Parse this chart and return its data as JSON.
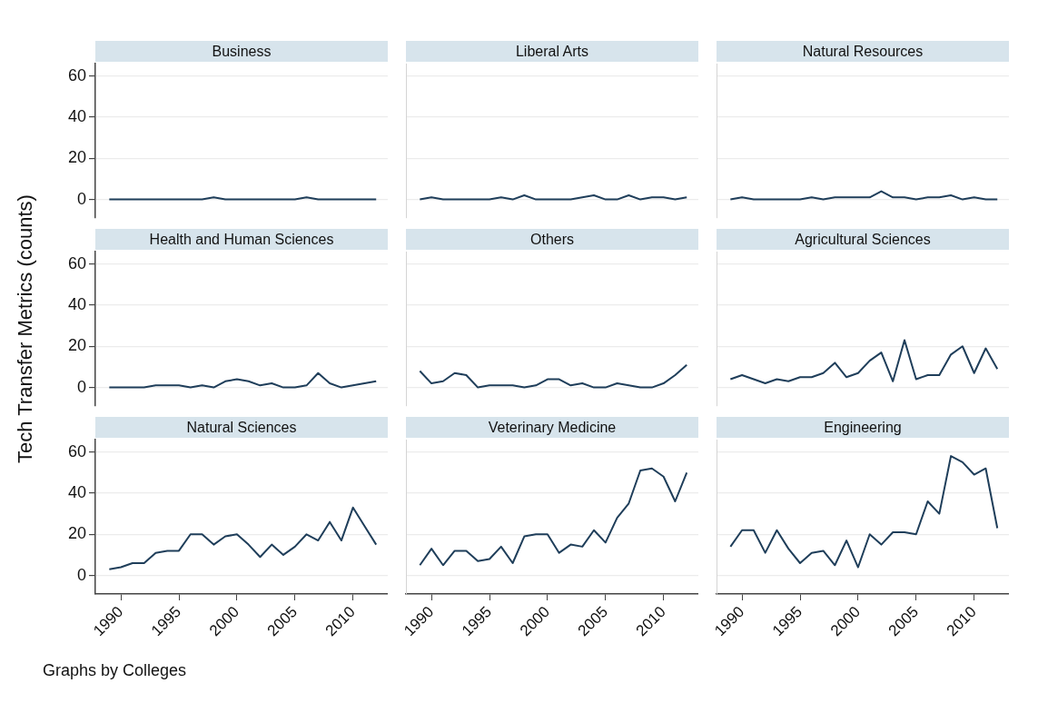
{
  "chart_data": [
    {
      "type": "line",
      "title": "Business",
      "x": [
        1989,
        1990,
        1991,
        1992,
        1993,
        1994,
        1995,
        1996,
        1997,
        1998,
        1999,
        2000,
        2001,
        2002,
        2003,
        2004,
        2005,
        2006,
        2007,
        2008,
        2009,
        2010,
        2011,
        2012
      ],
      "xlim": [
        1987.8,
        2013
      ],
      "ylim": [
        -9,
        66
      ],
      "yticks": [
        0,
        20,
        40,
        60
      ],
      "grid": "y",
      "tick_labels": "y",
      "series": [
        {
          "color": "#1f3e5a",
          "values": [
            0,
            0,
            0,
            0,
            0,
            0,
            0,
            0,
            0,
            1,
            0,
            0,
            0,
            0,
            0,
            0,
            0,
            1,
            0,
            0,
            0,
            0,
            0,
            0
          ]
        }
      ]
    },
    {
      "type": "line",
      "title": "Liberal Arts",
      "x": [
        1989,
        1990,
        1991,
        1992,
        1993,
        1994,
        1995,
        1996,
        1997,
        1998,
        1999,
        2000,
        2001,
        2002,
        2003,
        2004,
        2005,
        2006,
        2007,
        2008,
        2009,
        2010,
        2011,
        2012
      ],
      "xlim": [
        1987.8,
        2013
      ],
      "ylim": [
        -9,
        66
      ],
      "yticks": [
        0,
        20,
        40,
        60
      ],
      "grid": "y",
      "tick_labels": false,
      "series": [
        {
          "color": "#1f3e5a",
          "values": [
            0,
            1,
            0,
            0,
            0,
            0,
            0,
            1,
            0,
            2,
            0,
            0,
            0,
            0,
            1,
            2,
            0,
            0,
            2,
            0,
            1,
            1,
            0,
            1
          ]
        }
      ]
    },
    {
      "type": "line",
      "title": "Natural Resources",
      "x": [
        1989,
        1990,
        1991,
        1992,
        1993,
        1994,
        1995,
        1996,
        1997,
        1998,
        1999,
        2000,
        2001,
        2002,
        2003,
        2004,
        2005,
        2006,
        2007,
        2008,
        2009,
        2010,
        2011,
        2012
      ],
      "xlim": [
        1987.8,
        2013
      ],
      "ylim": [
        -9,
        66
      ],
      "yticks": [
        0,
        20,
        40,
        60
      ],
      "grid": "y",
      "tick_labels": false,
      "series": [
        {
          "color": "#1f3e5a",
          "values": [
            0,
            1,
            0,
            0,
            0,
            0,
            0,
            1,
            0,
            1,
            1,
            1,
            1,
            4,
            1,
            1,
            0,
            1,
            1,
            2,
            0,
            1,
            0,
            0
          ]
        }
      ]
    },
    {
      "type": "line",
      "title": "Health and Human Sciences",
      "ylabel": "Tech Transfer Metrics (counts)",
      "x": [
        1989,
        1990,
        1991,
        1992,
        1993,
        1994,
        1995,
        1996,
        1997,
        1998,
        1999,
        2000,
        2001,
        2002,
        2003,
        2004,
        2005,
        2006,
        2007,
        2008,
        2009,
        2010,
        2011,
        2012
      ],
      "xlim": [
        1987.8,
        2013
      ],
      "ylim": [
        -9,
        66
      ],
      "yticks": [
        0,
        20,
        40,
        60
      ],
      "grid": "y",
      "tick_labels": "y",
      "series": [
        {
          "color": "#1f3e5a",
          "values": [
            0,
            0,
            0,
            0,
            1,
            1,
            1,
            0,
            1,
            0,
            3,
            4,
            3,
            1,
            2,
            0,
            0,
            1,
            7,
            2,
            0,
            1,
            2,
            3
          ]
        }
      ]
    },
    {
      "type": "line",
      "title": "Others",
      "x": [
        1989,
        1990,
        1991,
        1992,
        1993,
        1994,
        1995,
        1996,
        1997,
        1998,
        1999,
        2000,
        2001,
        2002,
        2003,
        2004,
        2005,
        2006,
        2007,
        2008,
        2009,
        2010,
        2011,
        2012
      ],
      "xlim": [
        1987.8,
        2013
      ],
      "ylim": [
        -9,
        66
      ],
      "yticks": [
        0,
        20,
        40,
        60
      ],
      "grid": "y",
      "tick_labels": false,
      "series": [
        {
          "color": "#1f3e5a",
          "values": [
            8,
            2,
            3,
            7,
            6,
            0,
            1,
            1,
            1,
            0,
            1,
            4,
            4,
            1,
            2,
            0,
            0,
            2,
            1,
            0,
            0,
            2,
            6,
            11
          ]
        }
      ]
    },
    {
      "type": "line",
      "title": "Agricultural Sciences",
      "x": [
        1989,
        1990,
        1991,
        1992,
        1993,
        1994,
        1995,
        1996,
        1997,
        1998,
        1999,
        2000,
        2001,
        2002,
        2003,
        2004,
        2005,
        2006,
        2007,
        2008,
        2009,
        2010,
        2011,
        2012
      ],
      "xlim": [
        1987.8,
        2013
      ],
      "ylim": [
        -9,
        66
      ],
      "yticks": [
        0,
        20,
        40,
        60
      ],
      "grid": "y",
      "tick_labels": false,
      "series": [
        {
          "color": "#1f3e5a",
          "values": [
            4,
            6,
            4,
            2,
            4,
            3,
            5,
            5,
            7,
            12,
            5,
            7,
            13,
            17,
            3,
            23,
            4,
            6,
            6,
            16,
            20,
            7,
            19,
            9
          ]
        }
      ]
    },
    {
      "type": "line",
      "title": "Natural Sciences",
      "annotations": [
        "Graphs by Colleges"
      ],
      "x": [
        1989,
        1990,
        1991,
        1992,
        1993,
        1994,
        1995,
        1996,
        1997,
        1998,
        1999,
        2000,
        2001,
        2002,
        2003,
        2004,
        2005,
        2006,
        2007,
        2008,
        2009,
        2010,
        2011,
        2012
      ],
      "xlim": [
        1987.8,
        2013
      ],
      "xticks": [
        1990,
        1995,
        2000,
        2005,
        2010
      ],
      "ylim": [
        -9,
        66
      ],
      "yticks": [
        0,
        20,
        40,
        60
      ],
      "grid": "y",
      "series": [
        {
          "color": "#1f3e5a",
          "values": [
            3,
            4,
            6,
            6,
            11,
            12,
            12,
            20,
            20,
            15,
            19,
            20,
            15,
            9,
            15,
            10,
            14,
            20,
            17,
            26,
            17,
            33,
            24,
            15
          ]
        }
      ]
    },
    {
      "type": "line",
      "title": "Veterinary Medicine",
      "x": [
        1989,
        1990,
        1991,
        1992,
        1993,
        1994,
        1995,
        1996,
        1997,
        1998,
        1999,
        2000,
        2001,
        2002,
        2003,
        2004,
        2005,
        2006,
        2007,
        2008,
        2009,
        2010,
        2011,
        2012
      ],
      "xlim": [
        1987.8,
        2013
      ],
      "xticks": [
        1990,
        1995,
        2000,
        2005,
        2010
      ],
      "ylim": [
        -9,
        66
      ],
      "yticks": [
        0,
        20,
        40,
        60
      ],
      "grid": "y",
      "tick_labels": "x",
      "series": [
        {
          "color": "#1f3e5a",
          "values": [
            5,
            13,
            5,
            12,
            12,
            7,
            8,
            14,
            6,
            19,
            20,
            20,
            11,
            15,
            14,
            22,
            16,
            28,
            35,
            51,
            52,
            48,
            36,
            50
          ]
        }
      ]
    },
    {
      "type": "line",
      "title": "Engineering",
      "x": [
        1989,
        1990,
        1991,
        1992,
        1993,
        1994,
        1995,
        1996,
        1997,
        1998,
        1999,
        2000,
        2001,
        2002,
        2003,
        2004,
        2005,
        2006,
        2007,
        2008,
        2009,
        2010,
        2011,
        2012
      ],
      "xlim": [
        1987.8,
        2013
      ],
      "xticks": [
        1990,
        1995,
        2000,
        2005,
        2010
      ],
      "ylim": [
        -9,
        66
      ],
      "yticks": [
        0,
        20,
        40,
        60
      ],
      "grid": "y",
      "tick_labels": "x",
      "series": [
        {
          "color": "#1f3e5a",
          "values": [
            14,
            22,
            22,
            11,
            22,
            13,
            6,
            11,
            12,
            5,
            17,
            4,
            20,
            15,
            21,
            21,
            20,
            36,
            30,
            58,
            55,
            49,
            52,
            23
          ]
        }
      ]
    }
  ]
}
